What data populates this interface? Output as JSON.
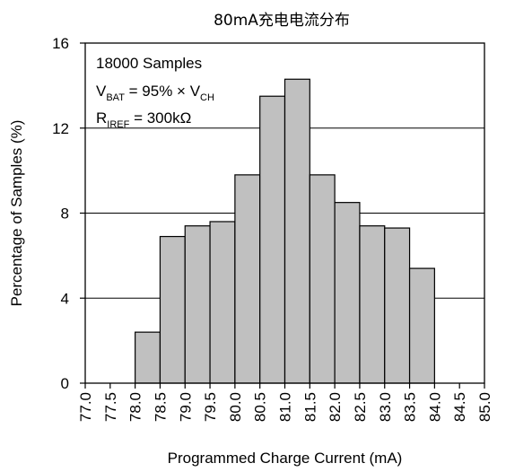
{
  "chart_data": {
    "type": "bar",
    "title": "80mA充电电流分布",
    "xlabel": "Programmed Charge Current (mA)",
    "ylabel": "Percentage of Samples (%)",
    "ylim": [
      0,
      16
    ],
    "yticks": [
      0,
      4,
      8,
      12,
      16
    ],
    "grid": "horizontal",
    "bin_edges": [
      "77.0",
      "77.5",
      "78.0",
      "78.5",
      "79.0",
      "79.5",
      "80.0",
      "80.5",
      "81.0",
      "81.5",
      "82.0",
      "82.5",
      "83.0",
      "83.5",
      "84.0",
      "84.5",
      "85.0"
    ],
    "values": [
      0,
      0,
      2.4,
      6.9,
      7.4,
      7.6,
      9.8,
      13.5,
      14.3,
      9.8,
      8.5,
      7.4,
      7.3,
      5.4,
      0,
      0
    ],
    "bar_color": "#c0c0c0",
    "annotations": {
      "samples": "18000 Samples",
      "vbat_main": "V",
      "vbat_sub": "BAT",
      "vbat_mid": " = 95% × V",
      "vbat_sub2": "CH",
      "riref_main": "R",
      "riref_sub": "IREF",
      "riref_rest": " = 300kΩ"
    }
  }
}
